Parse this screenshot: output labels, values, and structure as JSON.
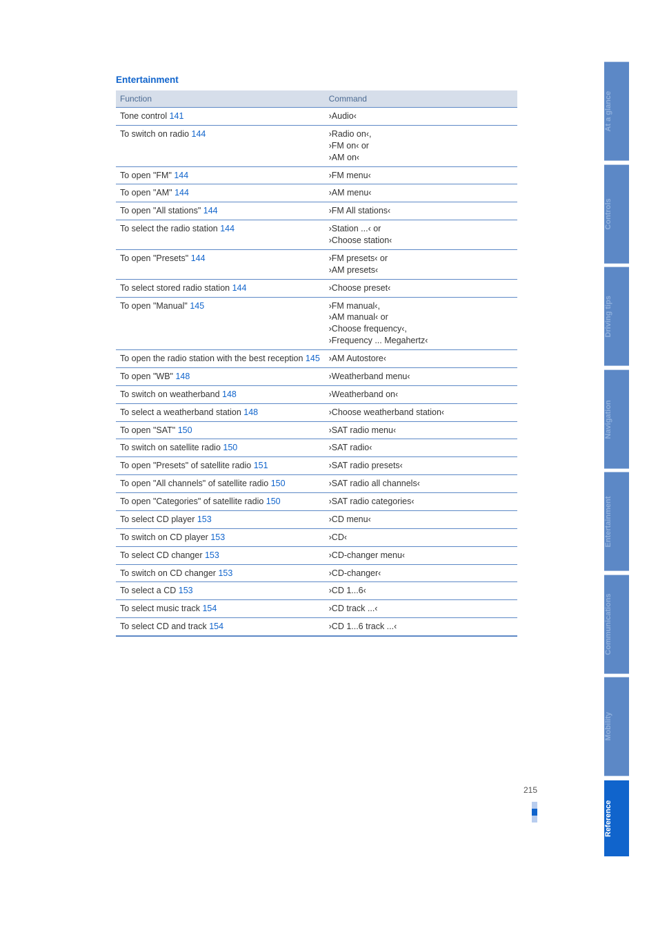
{
  "section_title": "Entertainment",
  "table": {
    "header": {
      "function": "Function",
      "command": "Command"
    },
    "rows": [
      {
        "fn": "Tone control",
        "pg": "141",
        "cmd": "›Audio‹"
      },
      {
        "fn": "To switch on radio",
        "pg": "144",
        "cmd": "›Radio on‹,\n›FM on‹ or\n›AM on‹"
      },
      {
        "fn": "To open \"FM\"",
        "pg": "144",
        "cmd": "›FM menu‹"
      },
      {
        "fn": "To open \"AM\"",
        "pg": "144",
        "cmd": "›AM menu‹"
      },
      {
        "fn": "To open \"All stations\"",
        "pg": "144",
        "cmd": "›FM All stations‹"
      },
      {
        "fn": "To select the radio station",
        "pg": "144",
        "cmd": "›Station ...‹ or\n›Choose station‹"
      },
      {
        "fn": "To open \"Presets\"",
        "pg": "144",
        "cmd": "›FM presets‹ or\n›AM presets‹"
      },
      {
        "fn": "To select stored radio station",
        "pg": "144",
        "cmd": "›Choose preset‹"
      },
      {
        "fn": "To open \"Manual\"",
        "pg": "145",
        "cmd": "›FM manual‹,\n›AM manual‹ or\n›Choose frequency‹,\n›Frequency ... Megahertz‹"
      },
      {
        "fn": "To open the radio station with the best reception",
        "pg": "145",
        "cmd": "›AM Autostore‹"
      },
      {
        "fn": "To open \"WB\"",
        "pg": "148",
        "cmd": "›Weatherband menu‹"
      },
      {
        "fn": "To switch on weatherband",
        "pg": "148",
        "cmd": "›Weatherband on‹"
      },
      {
        "fn": "To select a weatherband station",
        "pg": "148",
        "cmd": "›Choose weatherband station‹"
      },
      {
        "fn": "To open \"SAT\"",
        "pg": "150",
        "cmd": "›SAT radio menu‹"
      },
      {
        "fn": "To switch on satellite radio",
        "pg": "150",
        "cmd": "›SAT radio‹"
      },
      {
        "fn": "To open \"Presets\" of satellite radio",
        "pg": "151",
        "cmd": "›SAT radio presets‹"
      },
      {
        "fn": "To open \"All channels\" of satellite radio",
        "pg": "150",
        "cmd": "›SAT radio all channels‹"
      },
      {
        "fn": "To open \"Categories\" of satellite radio",
        "pg": "150",
        "cmd": "›SAT radio categories‹"
      },
      {
        "fn": "To select CD player",
        "pg": "153",
        "cmd": "›CD menu‹"
      },
      {
        "fn": "To switch on CD player",
        "pg": "153",
        "cmd": "›CD‹"
      },
      {
        "fn": "To select CD changer",
        "pg": "153",
        "cmd": "›CD-changer menu‹"
      },
      {
        "fn": "To switch on CD changer",
        "pg": "153",
        "cmd": "›CD-changer‹"
      },
      {
        "fn": "To select a CD",
        "pg": "153",
        "cmd": "›CD 1...6‹"
      },
      {
        "fn": "To select music track",
        "pg": "154",
        "cmd": "›CD track ...‹"
      },
      {
        "fn": "To select CD and track",
        "pg": "154",
        "cmd": "›CD 1...6 track ...‹"
      }
    ]
  },
  "page_number": "215",
  "tabs": [
    {
      "label": "At a glance",
      "active": false
    },
    {
      "label": "Controls",
      "active": false
    },
    {
      "label": "Driving tips",
      "active": false
    },
    {
      "label": "Navigation",
      "active": false
    },
    {
      "label": "Entertainment",
      "active": false
    },
    {
      "label": "Communications",
      "active": false
    },
    {
      "label": "Mobility",
      "active": false
    },
    {
      "label": "Reference",
      "active": true
    }
  ]
}
